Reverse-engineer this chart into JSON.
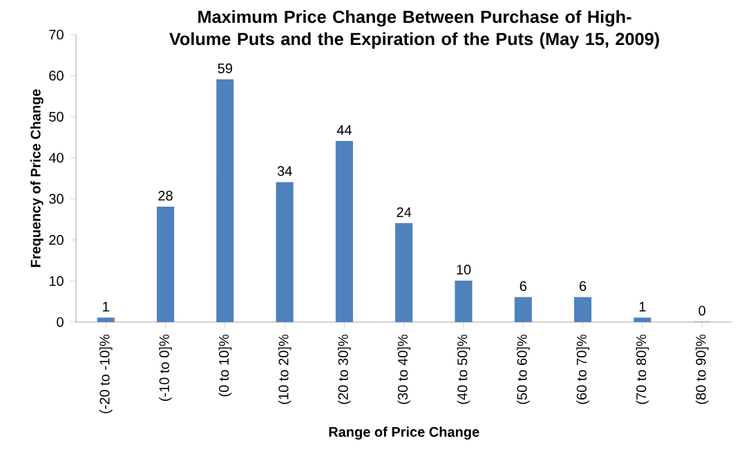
{
  "chart_data": {
    "type": "bar",
    "title": "Maximum Price Change Between Purchase of High-Volume Puts and the Expiration of the Puts (May 15, 2009)",
    "xlabel": "Range of Price Change",
    "ylabel": "Frequency of Price Change",
    "categories": [
      "(-20 to -10]%",
      "(-10 to 0]%",
      "(0 to 10]%",
      "(10 to 20]%",
      "(20 to 30]%",
      "(30 to 40]%",
      "(40 to 50]%",
      "(50 to 60]%",
      "(60 to 70]%",
      "(70 to 80]%",
      "(80 to 90]%"
    ],
    "values": [
      1,
      28,
      59,
      34,
      44,
      24,
      10,
      6,
      6,
      1,
      0
    ],
    "color": "#4f81bd",
    "ylim": [
      0,
      70
    ],
    "yticks": [
      0,
      10,
      20,
      30,
      40,
      50,
      60,
      70
    ],
    "data_labels": true
  }
}
